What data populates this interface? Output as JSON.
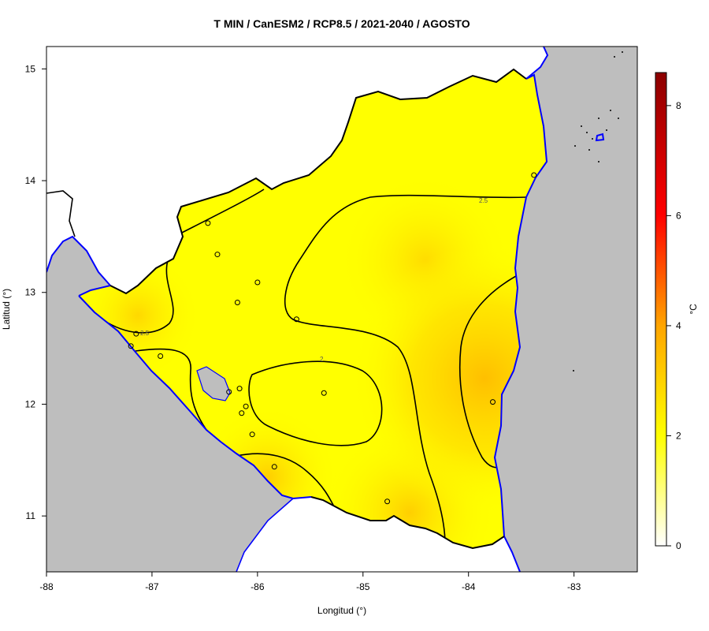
{
  "title": "T MIN / CanESM2 / RCP8.5 / 2021-2040 / AGOSTO",
  "xlabel": "Longitud (°)",
  "ylabel": "Latitud (°)",
  "colorbar": {
    "unit": "°C",
    "ticks": [
      "0",
      "2",
      "4",
      "6",
      "8"
    ],
    "range": [
      0,
      8.6
    ],
    "colors": [
      "#ffffff",
      "#ffff00",
      "#ffa500",
      "#ff0000",
      "#8b0000"
    ]
  },
  "map": {
    "x_ticks": [
      "-88",
      "-87",
      "-86",
      "-85",
      "-84",
      "-83"
    ],
    "y_ticks": [
      "11",
      "12",
      "13",
      "14",
      "15"
    ],
    "xlim": [
      -88,
      -82.4
    ],
    "ylim": [
      10.5,
      15.2
    ],
    "sea_color": "#bebebe",
    "coast_color": "#0000ff",
    "border_color": "#000000",
    "field_low_color": "#ffff00",
    "field_high_color": "#ffc000",
    "contour_labels": [
      "2.5",
      "2.5",
      "2"
    ]
  },
  "stations": [
    {
      "lon": -86.47,
      "lat": 13.62
    },
    {
      "lon": -86.38,
      "lat": 13.34
    },
    {
      "lon": -86.0,
      "lat": 13.09
    },
    {
      "lon": -86.19,
      "lat": 12.91
    },
    {
      "lon": -85.63,
      "lat": 12.76
    },
    {
      "lon": -87.15,
      "lat": 12.63
    },
    {
      "lon": -87.2,
      "lat": 12.52
    },
    {
      "lon": -86.92,
      "lat": 12.43
    },
    {
      "lon": -86.27,
      "lat": 12.11
    },
    {
      "lon": -86.17,
      "lat": 12.14
    },
    {
      "lon": -85.37,
      "lat": 12.1
    },
    {
      "lon": -86.11,
      "lat": 11.98
    },
    {
      "lon": -86.15,
      "lat": 11.92
    },
    {
      "lon": -86.05,
      "lat": 11.73
    },
    {
      "lon": -85.84,
      "lat": 11.44
    },
    {
      "lon": -84.77,
      "lat": 11.13
    },
    {
      "lon": -83.77,
      "lat": 12.02
    },
    {
      "lon": -83.38,
      "lat": 14.05
    }
  ]
}
